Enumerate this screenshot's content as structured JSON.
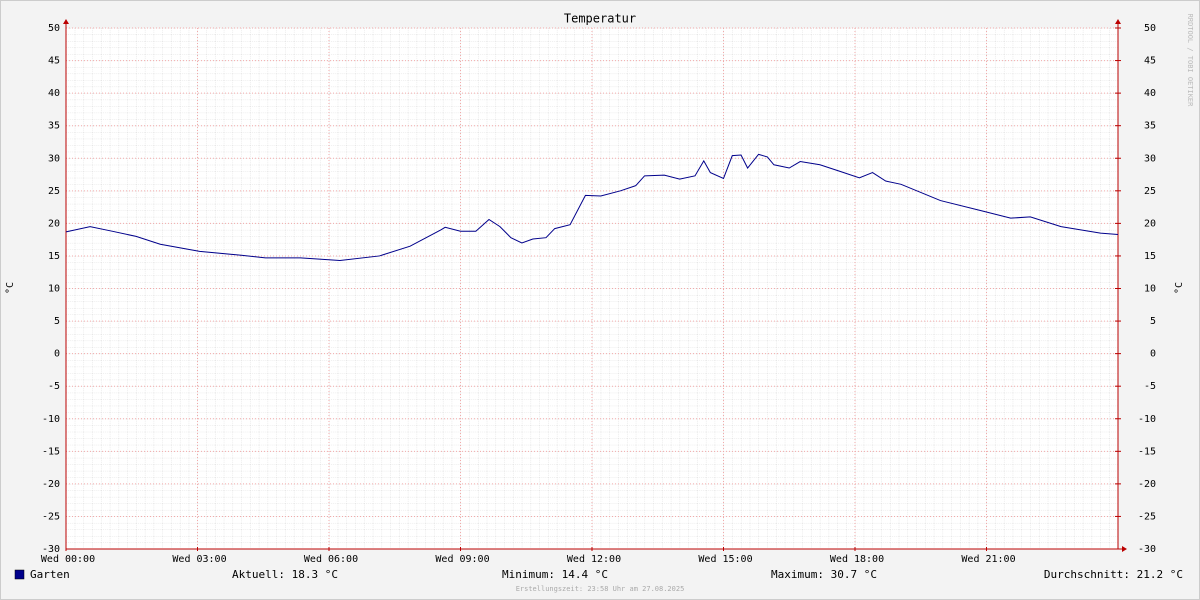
{
  "chart_data": {
    "type": "line",
    "title": "Temperatur",
    "ylabel": "°C",
    "y2label": "°C",
    "x": [
      0,
      0.55,
      1.05,
      1.6,
      2.15,
      3.05,
      4.0,
      4.55,
      5.35,
      6.25,
      7.15,
      7.85,
      8.55,
      8.65,
      9.0,
      9.35,
      9.65,
      9.9,
      10.15,
      10.4,
      10.65,
      10.95,
      11.15,
      11.5,
      11.85,
      12.2,
      12.65,
      13.0,
      13.2,
      13.65,
      14.0,
      14.35,
      14.55,
      14.7,
      15.0,
      15.2,
      15.4,
      15.55,
      15.8,
      16.0,
      16.15,
      16.5,
      16.75,
      17.2,
      17.65,
      18.1,
      18.4,
      18.7,
      19.05,
      19.95,
      20.85,
      21.55,
      22.0,
      22.7,
      23.6,
      24.0
    ],
    "series": [
      {
        "name": "Garten",
        "color": "#00008b",
        "values": [
          18.7,
          19.5,
          18.8,
          18.0,
          16.8,
          15.7,
          15.1,
          14.7,
          14.7,
          14.3,
          15.0,
          16.5,
          19.0,
          19.4,
          18.8,
          18.8,
          20.6,
          19.5,
          17.8,
          17.0,
          17.6,
          17.8,
          19.2,
          19.8,
          24.3,
          24.2,
          25.0,
          25.8,
          27.3,
          27.4,
          26.8,
          27.3,
          29.6,
          27.8,
          26.9,
          30.4,
          30.5,
          28.5,
          30.6,
          30.2,
          29.0,
          28.5,
          29.5,
          29.0,
          28.0,
          27.0,
          27.8,
          26.5,
          26.0,
          23.5,
          22.0,
          20.8,
          21.0,
          19.5,
          18.5,
          18.3
        ]
      }
    ],
    "xlim": [
      0,
      24
    ],
    "xticks": [
      {
        "value": 0,
        "label": "Wed 00:00"
      },
      {
        "value": 3,
        "label": "Wed 03:00"
      },
      {
        "value": 6,
        "label": "Wed 06:00"
      },
      {
        "value": 9,
        "label": "Wed 09:00"
      },
      {
        "value": 12,
        "label": "Wed 12:00"
      },
      {
        "value": 15,
        "label": "Wed 15:00"
      },
      {
        "value": 18,
        "label": "Wed 18:00"
      },
      {
        "value": 21,
        "label": "Wed 21:00"
      }
    ],
    "ylim": [
      -30,
      50
    ],
    "yticks": [
      -30,
      -25,
      -20,
      -15,
      -10,
      -5,
      0,
      5,
      10,
      15,
      20,
      25,
      30,
      35,
      40,
      45,
      50
    ],
    "y2lim": [
      -30,
      50
    ],
    "y2ticks": [
      -30,
      -25,
      -20,
      -15,
      -10,
      -5,
      0,
      5,
      10,
      15,
      20,
      25,
      30,
      35,
      40,
      45,
      50
    ],
    "grid": true,
    "stats": [
      "Aktuell: 18.3 °C",
      "Minimum: 14.4 °C",
      "Maximum: 30.7 °C",
      "Durchschnitt: 21.2 °C"
    ],
    "footer": "Erstellungszeit: 23:58 Uhr am 27.08.2025",
    "watermark": "RRDTOOL / TOBI OETIKER"
  }
}
